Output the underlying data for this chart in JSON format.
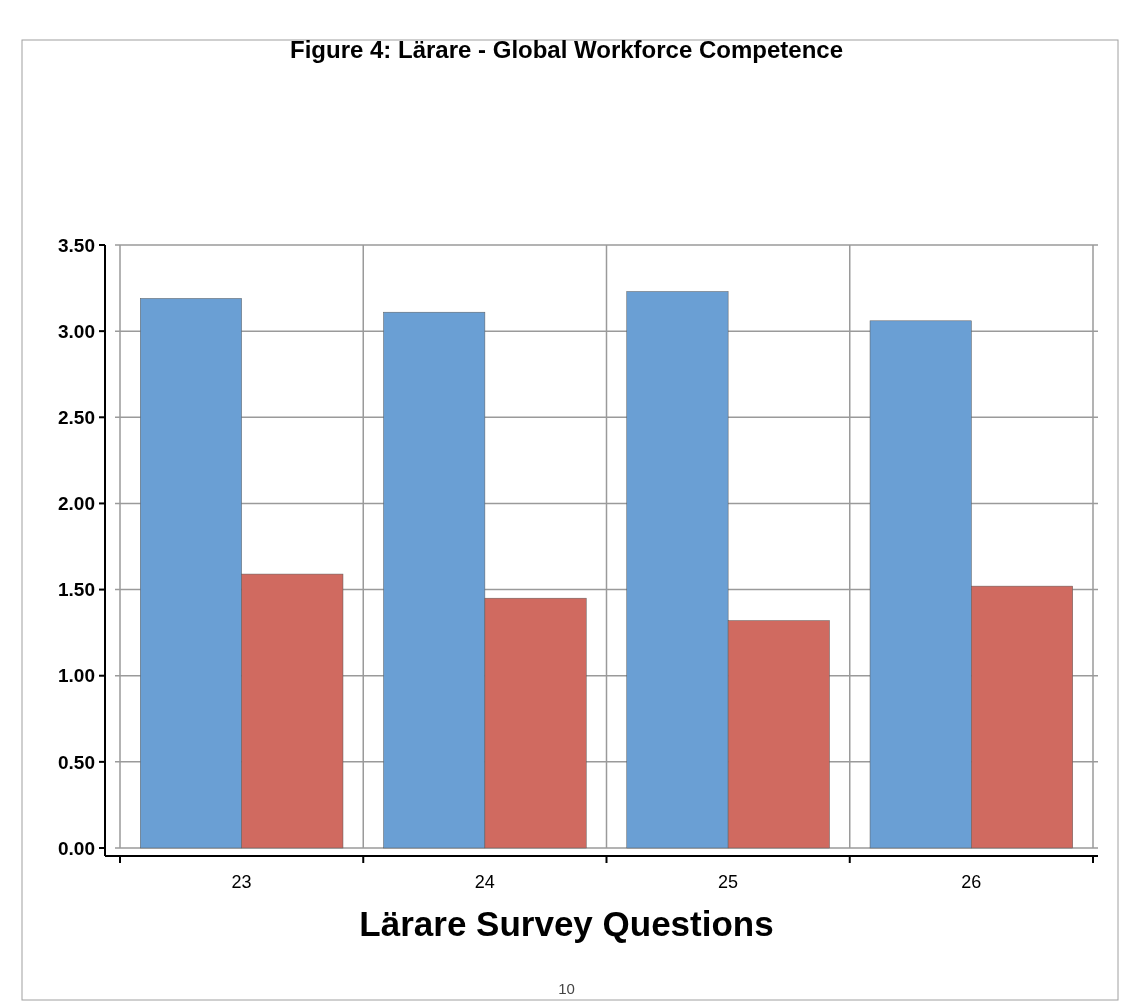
{
  "chart_data": {
    "type": "bar",
    "title": "Figure 4: Lärare - Global Workforce Competence",
    "xlabel": "Lärare Survey Questions",
    "categories": [
      "23",
      "24",
      "25",
      "26"
    ],
    "series": [
      {
        "color": "#6a9fd4",
        "values": [
          3.19,
          3.11,
          3.23,
          3.06
        ]
      },
      {
        "color": "#d06a60",
        "values": [
          1.59,
          1.45,
          1.32,
          1.52
        ]
      }
    ],
    "ylim": [
      0,
      3.5
    ],
    "yticks": [
      {
        "value": 0,
        "label": "0.00"
      },
      {
        "value": 0.5,
        "label": "0.50"
      },
      {
        "value": 1,
        "label": "1.00"
      },
      {
        "value": 1.5,
        "label": "1.50"
      },
      {
        "value": 2,
        "label": "2.00"
      },
      {
        "value": 2.5,
        "label": "2.50"
      },
      {
        "value": 3,
        "label": "3.00"
      },
      {
        "value": 3.5,
        "label": "3.50"
      }
    ],
    "grid": true,
    "annotations": [
      "10"
    ]
  }
}
